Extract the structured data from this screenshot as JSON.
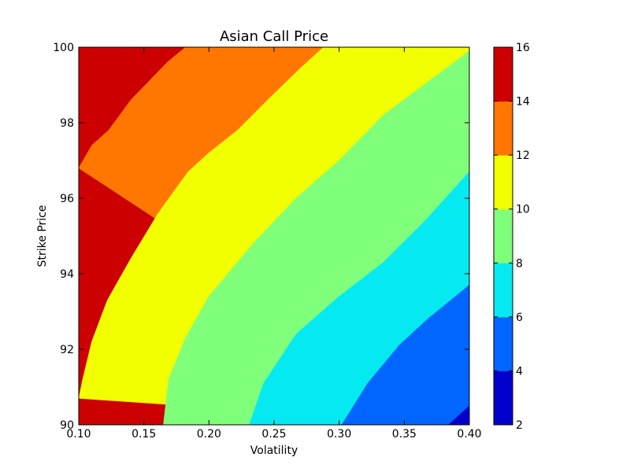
{
  "chart_data": {
    "type": "contour",
    "title": "Asian Call Price",
    "xlabel": "Volatility",
    "ylabel": "Strike Price",
    "xlim": [
      0.1,
      0.4
    ],
    "ylim": [
      90,
      100
    ],
    "x_ticks": [
      "0.10",
      "0.15",
      "0.20",
      "0.25",
      "0.30",
      "0.35",
      "0.40"
    ],
    "y_ticks": [
      "90",
      "92",
      "94",
      "96",
      "98",
      "100"
    ],
    "colorbar": {
      "ticks": [
        "2",
        "4",
        "6",
        "8",
        "10",
        "12",
        "14",
        "16"
      ],
      "levels": [
        2,
        4,
        6,
        8,
        10,
        12,
        14,
        16
      ],
      "colors": [
        "#0000cd",
        "#0066ff",
        "#05eaf0",
        "#80ff7a",
        "#f2ff00",
        "#ff7700",
        "#cc0000"
      ]
    },
    "contours": [
      {
        "level": 4,
        "points": [
          [
            0.384,
            90
          ],
          [
            0.4,
            90.5
          ]
        ]
      },
      {
        "level": 6,
        "points": [
          [
            0.302,
            90
          ],
          [
            0.322,
            91.1
          ],
          [
            0.346,
            92.1
          ],
          [
            0.368,
            92.8
          ],
          [
            0.4,
            93.7
          ]
        ]
      },
      {
        "level": 8,
        "points": [
          [
            0.231,
            90
          ],
          [
            0.242,
            91.1
          ],
          [
            0.267,
            92.4
          ],
          [
            0.3,
            93.4
          ],
          [
            0.334,
            94.3
          ],
          [
            0.366,
            95.4
          ],
          [
            0.4,
            96.7
          ]
        ]
      },
      {
        "level": 10,
        "points": [
          [
            0.165,
            90
          ],
          [
            0.169,
            91.2
          ],
          [
            0.182,
            92.3
          ],
          [
            0.2,
            93.4
          ],
          [
            0.234,
            94.8
          ],
          [
            0.267,
            96.0
          ],
          [
            0.3,
            97.0
          ],
          [
            0.334,
            98.2
          ],
          [
            0.4,
            99.9
          ]
        ]
      },
      {
        "level": 12,
        "points": [
          [
            0.1,
            90.7
          ],
          [
            0.103,
            91.2
          ],
          [
            0.11,
            92.2
          ],
          [
            0.122,
            93.3
          ],
          [
            0.14,
            94.4
          ],
          [
            0.161,
            95.6
          ],
          [
            0.184,
            96.7
          ],
          [
            0.2,
            97.2
          ],
          [
            0.222,
            97.8
          ],
          [
            0.248,
            98.7
          ],
          [
            0.269,
            99.4
          ],
          [
            0.288,
            100
          ]
        ]
      },
      {
        "level": 14,
        "points": [
          [
            0.1,
            96.8
          ],
          [
            0.11,
            97.4
          ],
          [
            0.123,
            97.8
          ],
          [
            0.14,
            98.6
          ],
          [
            0.168,
            99.6
          ],
          [
            0.182,
            100
          ]
        ]
      }
    ]
  }
}
